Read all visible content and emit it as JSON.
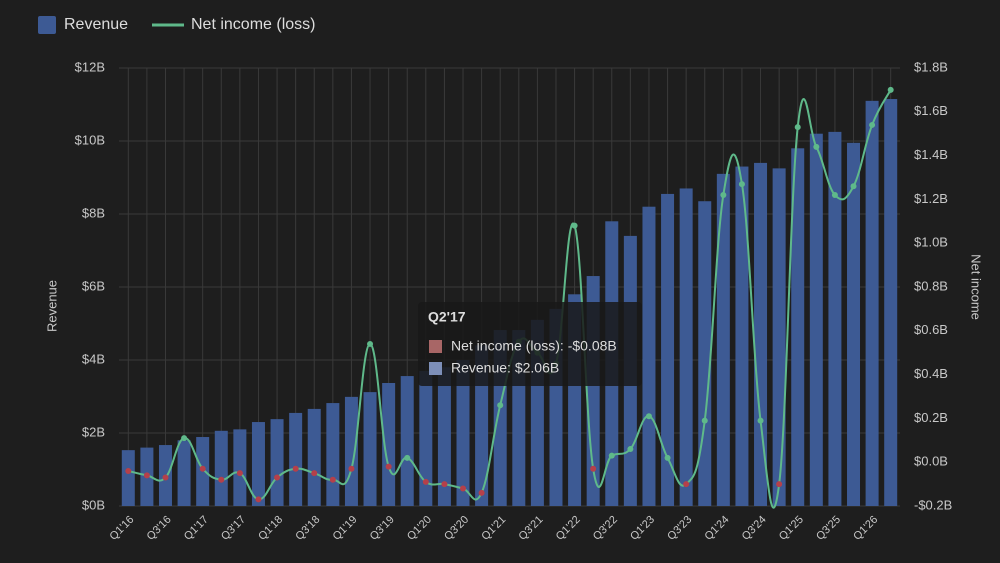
{
  "chart_data": {
    "type": "bar-line",
    "categories": [
      "Q1'16",
      null,
      "Q3'16",
      null,
      "Q1'17",
      null,
      "Q3'17",
      null,
      "Q1'18",
      null,
      "Q3'18",
      null,
      "Q1'19",
      null,
      "Q3'19",
      null,
      "Q1'20",
      null,
      "Q3'20",
      null,
      "Q1'21",
      null,
      "Q3'21",
      null,
      "Q1'22",
      null,
      "Q3'22",
      null,
      "Q1'23",
      null,
      "Q3'23",
      null,
      "Q1'24",
      null,
      "Q3'24",
      null,
      "Q1'25",
      null,
      "Q3'25",
      null,
      "Q1'26",
      null
    ],
    "series": [
      {
        "name": "Revenue",
        "type": "bar",
        "color": "#3d5a94",
        "values": [
          1.53,
          1.6,
          1.67,
          1.8,
          1.89,
          2.06,
          2.1,
          2.3,
          2.38,
          2.55,
          2.66,
          2.82,
          2.99,
          3.12,
          3.37,
          3.56,
          3.7,
          3.8,
          4.0,
          4.4,
          4.82,
          4.82,
          5.1,
          5.4,
          5.8,
          6.3,
          7.8,
          7.4,
          8.2,
          8.55,
          8.7,
          8.35,
          9.1,
          9.3,
          9.4,
          9.25,
          9.8,
          10.2,
          10.25,
          9.95,
          11.1,
          11.15
        ]
      },
      {
        "name": "Net income (loss)",
        "type": "line",
        "axis": "y2",
        "color": "#5fb98a",
        "negative_color": "#b5404a",
        "values": [
          -0.04,
          -0.06,
          -0.07,
          0.11,
          -0.03,
          -0.08,
          -0.05,
          -0.17,
          -0.07,
          -0.03,
          -0.05,
          -0.08,
          -0.03,
          0.54,
          -0.02,
          0.02,
          -0.09,
          -0.1,
          -0.12,
          -0.14,
          0.26,
          0.55,
          0.5,
          0.45,
          1.08,
          -0.03,
          0.03,
          0.06,
          0.21,
          0.02,
          -0.1,
          0.19,
          1.22,
          1.27,
          0.19,
          -0.1,
          1.53,
          1.44,
          1.22,
          1.26,
          1.54,
          1.7
        ]
      }
    ],
    "y_label": "Revenue",
    "y2_label": "Net income",
    "ylim": [
      0,
      12
    ],
    "yticks": [
      {
        "value": 0,
        "label": "$0B"
      },
      {
        "value": 2,
        "label": "$2B"
      },
      {
        "value": 4,
        "label": "$4B"
      },
      {
        "value": 6,
        "label": "$6B"
      },
      {
        "value": 8,
        "label": "$8B"
      },
      {
        "value": 10,
        "label": "$10B"
      },
      {
        "value": 12,
        "label": "$12B"
      }
    ],
    "y2lim": [
      -0.2,
      1.8
    ],
    "y2ticks": [
      {
        "value": -0.2,
        "label": "-$0.2B"
      },
      {
        "value": 0,
        "label": "$0.0B"
      },
      {
        "value": 0.2,
        "label": "$0.2B"
      },
      {
        "value": 0.4,
        "label": "$0.4B"
      },
      {
        "value": 0.6,
        "label": "$0.6B"
      },
      {
        "value": 0.8,
        "label": "$0.8B"
      },
      {
        "value": 1.0,
        "label": "$1.0B"
      },
      {
        "value": 1.2,
        "label": "$1.2B"
      },
      {
        "value": 1.4,
        "label": "$1.4B"
      },
      {
        "value": 1.6,
        "label": "$1.6B"
      },
      {
        "value": 1.8,
        "label": "$1.8B"
      }
    ],
    "grid": true,
    "legend": "top-left",
    "tooltip": {
      "title": "Q2'17",
      "items": [
        "Net income (loss): -$0.08B",
        "Revenue: $2.06B"
      ]
    }
  }
}
